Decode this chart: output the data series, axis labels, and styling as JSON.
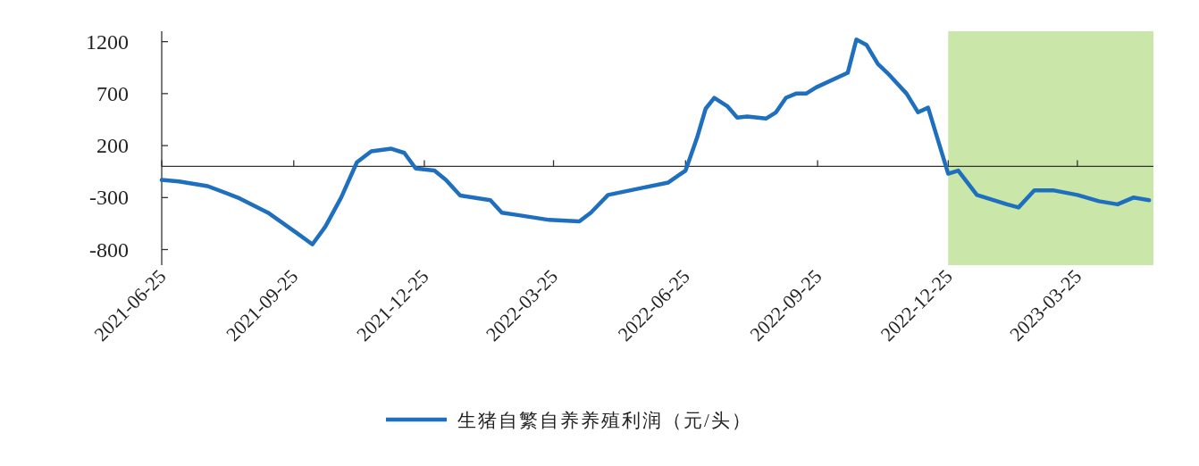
{
  "chart_data": {
    "type": "line",
    "x": [
      "2021-06-25",
      "2021-07-07",
      "2021-07-27",
      "2021-08-17",
      "2021-09-07",
      "2021-09-27",
      "2021-10-08",
      "2021-10-17",
      "2021-10-28",
      "2021-11-08",
      "2021-11-18",
      "2021-12-02",
      "2021-12-11",
      "2021-12-19",
      "2022-01-01",
      "2022-01-09",
      "2022-01-19",
      "2022-02-09",
      "2022-02-17",
      "2022-03-01",
      "2022-03-22",
      "2022-04-12",
      "2022-04-20",
      "2022-05-02",
      "2022-05-23",
      "2022-06-13",
      "2022-06-25",
      "2022-07-03",
      "2022-07-09",
      "2022-07-15",
      "2022-07-24",
      "2022-07-31",
      "2022-08-07",
      "2022-08-20",
      "2022-08-27",
      "2022-09-03",
      "2022-09-10",
      "2022-09-17",
      "2022-09-24",
      "2022-10-16",
      "2022-10-22",
      "2022-10-29",
      "2022-11-06",
      "2022-11-14",
      "2022-11-26",
      "2022-12-04",
      "2022-12-11",
      "2022-12-25",
      "2023-01-01",
      "2023-01-14",
      "2023-02-04",
      "2023-02-12",
      "2023-02-23",
      "2023-03-08",
      "2023-03-25",
      "2023-04-09",
      "2023-04-22",
      "2023-05-03",
      "2023-05-14"
    ],
    "series": [
      {
        "name": "生猪自繁自养养殖利润（元/头）",
        "color": "#1f6fbf",
        "values": [
          -130,
          -145,
          -190,
          -300,
          -445,
          -640,
          -750,
          -580,
          -300,
          40,
          145,
          170,
          130,
          -20,
          -40,
          -130,
          -280,
          -325,
          -445,
          -470,
          -515,
          -530,
          -445,
          -275,
          -215,
          -155,
          -40,
          275,
          555,
          660,
          580,
          470,
          480,
          460,
          520,
          660,
          700,
          700,
          760,
          900,
          1220,
          1170,
          985,
          880,
          700,
          520,
          565,
          -70,
          -40,
          -275,
          -365,
          -395,
          -230,
          -230,
          -275,
          -335,
          -365,
          -300,
          -325
        ]
      }
    ],
    "xlim": [
      "2021-06-25",
      "2023-05-17"
    ],
    "xticks": [
      "2021-06-25",
      "2021-09-25",
      "2021-12-25",
      "2022-03-25",
      "2022-06-25",
      "2022-09-25",
      "2022-12-25",
      "2023-03-25"
    ],
    "ylim": [
      -950,
      1300
    ],
    "yticks": [
      -800,
      -300,
      200,
      700,
      1200
    ],
    "bands": [
      {
        "axis": "x",
        "from": "2022-12-25",
        "to": "2023-05-17",
        "color": "#c5e3a0"
      }
    ],
    "legend": "bottom",
    "grid": false
  }
}
